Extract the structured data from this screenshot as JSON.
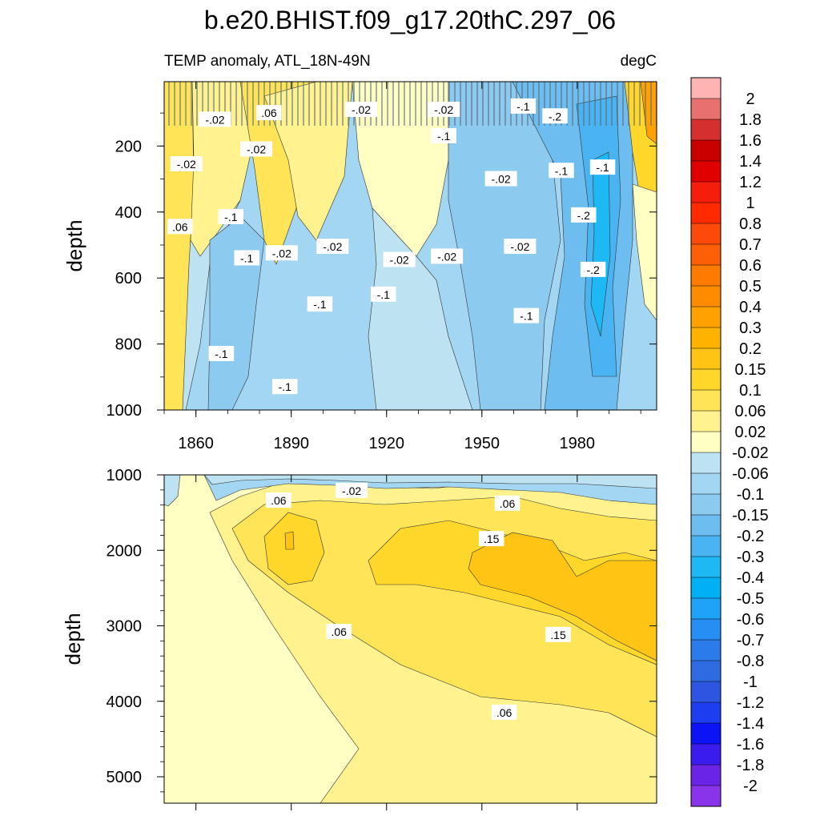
{
  "chart_data": [
    {
      "type": "heatmap",
      "panel": "upper",
      "title": "b.e20.BHIST.f09_g17.20thC.297_06",
      "subtitle_left": "TEMP anomaly, ATL_18N-49N",
      "subtitle_right": "degC",
      "ylabel": "depth",
      "xlabel": "",
      "xlim": [
        1850,
        2005
      ],
      "ylim": [
        1000,
        5
      ],
      "x_ticks": [
        1860,
        1890,
        1920,
        1950,
        1980
      ],
      "x_tick_labels": [
        "1860",
        "1890",
        "1920",
        "1950",
        "1980"
      ],
      "y_ticks": [
        200,
        400,
        600,
        800,
        1000
      ],
      "y_tick_labels": [
        "200",
        "400",
        "600",
        "800",
        "1000"
      ],
      "contour_labels": [
        {
          "text": "-.02",
          "x": 1866,
          "y": 120
        },
        {
          "text": ".06",
          "x": 1883,
          "y": 100
        },
        {
          "text": "-.02",
          "x": 1912,
          "y": 90
        },
        {
          "text": "-.02",
          "x": 1938,
          "y": 90
        },
        {
          "text": "-.1",
          "x": 1963,
          "y": 80
        },
        {
          "text": "-.2",
          "x": 1973,
          "y": 110
        },
        {
          "text": "-.02",
          "x": 1879,
          "y": 210
        },
        {
          "text": "-.1",
          "x": 1938,
          "y": 170
        },
        {
          "text": "-.02",
          "x": 1857,
          "y": 255
        },
        {
          "text": "-.02",
          "x": 1956,
          "y": 300
        },
        {
          "text": "-.1",
          "x": 1975,
          "y": 275
        },
        {
          "text": "-.1",
          "x": 1988,
          "y": 265
        },
        {
          "text": "-.1",
          "x": 1871,
          "y": 415
        },
        {
          "text": "-.2",
          "x": 1982,
          "y": 410
        },
        {
          "text": ".06",
          "x": 1855,
          "y": 445
        },
        {
          "text": "-.02",
          "x": 1887,
          "y": 525
        },
        {
          "text": "-.02",
          "x": 1903,
          "y": 505
        },
        {
          "text": "-.1",
          "x": 1876,
          "y": 540
        },
        {
          "text": "-.02",
          "x": 1924,
          "y": 545
        },
        {
          "text": "-.02",
          "x": 1939,
          "y": 535
        },
        {
          "text": "-.02",
          "x": 1962,
          "y": 505
        },
        {
          "text": "-.2",
          "x": 1985,
          "y": 575
        },
        {
          "text": "-.1",
          "x": 1899,
          "y": 680
        },
        {
          "text": "-.1",
          "x": 1919,
          "y": 650
        },
        {
          "text": "-.1",
          "x": 1964,
          "y": 715
        },
        {
          "text": "-.1",
          "x": 1868,
          "y": 830
        },
        {
          "text": "-.1",
          "x": 1888,
          "y": 930
        }
      ]
    },
    {
      "type": "heatmap",
      "panel": "lower",
      "ylabel": "depth",
      "xlim": [
        1850,
        2005
      ],
      "ylim": [
        5350,
        1000
      ],
      "y_ticks": [
        1000,
        2000,
        3000,
        4000,
        5000
      ],
      "y_tick_labels": [
        "1000",
        "2000",
        "3000",
        "4000",
        "5000"
      ],
      "contour_labels": [
        {
          "text": ".06",
          "x": 1886,
          "y": 1340
        },
        {
          "text": "-.02",
          "x": 1909,
          "y": 1210
        },
        {
          "text": ".06",
          "x": 1958,
          "y": 1380
        },
        {
          "text": ".15",
          "x": 1953,
          "y": 1850
        },
        {
          "text": ".06",
          "x": 1905,
          "y": 3080
        },
        {
          "text": ".15",
          "x": 1974,
          "y": 3120
        },
        {
          "text": ".06",
          "x": 1957,
          "y": 4150
        }
      ]
    },
    {
      "type": "colorbar",
      "levels": [
        "2",
        "1.8",
        "1.6",
        "1.4",
        "1.2",
        "1",
        "0.8",
        "0.7",
        "0.6",
        "0.5",
        "0.4",
        "0.3",
        "0.2",
        "0.15",
        "0.1",
        "0.06",
        "0.02",
        "-0.02",
        "-0.06",
        "-0.1",
        "-0.15",
        "-0.2",
        "-0.3",
        "-0.4",
        "-0.5",
        "-0.6",
        "-0.7",
        "-0.8",
        "-1",
        "-1.2",
        "-1.4",
        "-1.6",
        "-1.8",
        "-2"
      ],
      "colors": [
        "#ffb3b3",
        "#e8706f",
        "#d62f2f",
        "#c80000",
        "#e00000",
        "#f51e0d",
        "#ff2a00",
        "#fb4a0a",
        "#fc5f06",
        "#ff7b00",
        "#ff8c00",
        "#ffa100",
        "#ffb200",
        "#ffc414",
        "#ffd72a",
        "#ffe458",
        "#fff28f",
        "#ffffc4",
        "#bde2f1",
        "#a3d6f2",
        "#8dcaf0",
        "#6dbdf0",
        "#4ab4f2",
        "#1eb8f5",
        "#00b0f5",
        "#1fa3f8",
        "#278ef3",
        "#2c7bea",
        "#2f6be0",
        "#2d55df",
        "#1c3ef0",
        "#0a14f5",
        "#3a1cee",
        "#6a24e6",
        "#8a34e9"
      ]
    }
  ]
}
